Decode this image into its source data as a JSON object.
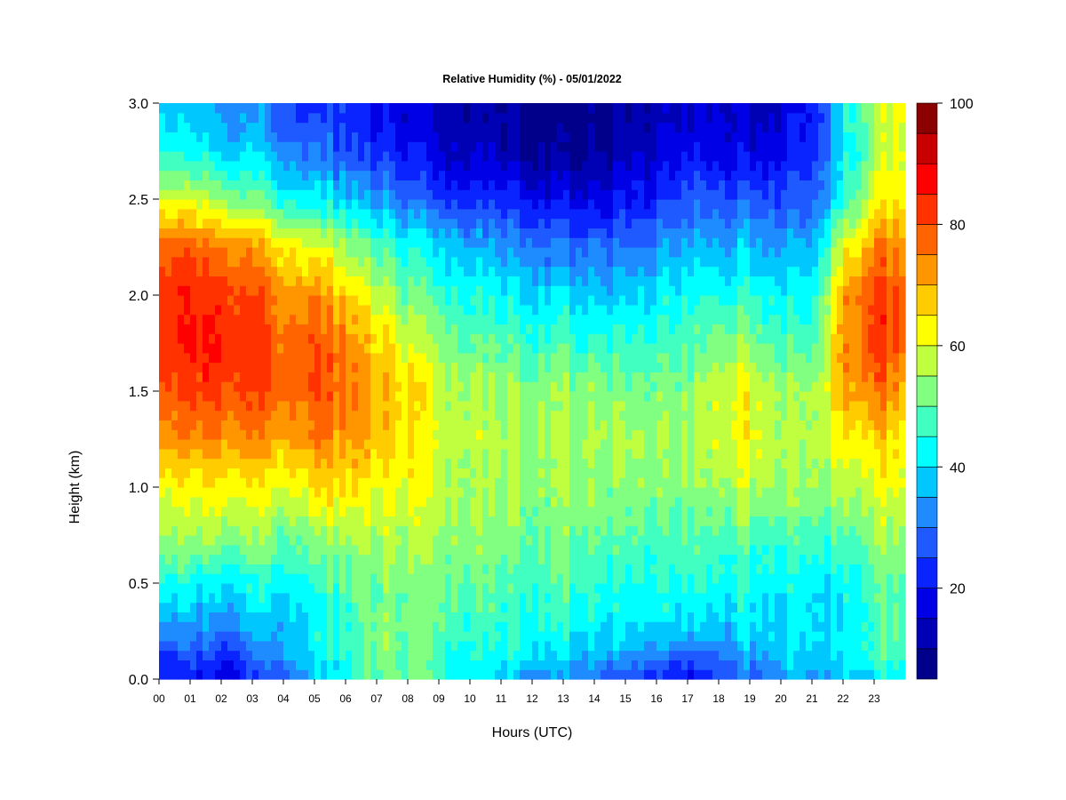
{
  "chart_data": {
    "type": "heatmap",
    "title": "Relative Humidity (%) - 05/01/2022",
    "xlabel": "Hours (UTC)",
    "ylabel": "Height (km)",
    "x_ticks": [
      "00",
      "01",
      "02",
      "03",
      "04",
      "05",
      "06",
      "07",
      "08",
      "09",
      "10",
      "11",
      "12",
      "13",
      "14",
      "15",
      "16",
      "17",
      "18",
      "19",
      "20",
      "21",
      "22",
      "23"
    ],
    "y_ticks": [
      "0.0",
      "0.5",
      "1.0",
      "1.5",
      "2.0",
      "2.5",
      "3.0"
    ],
    "xlim": [
      0,
      24
    ],
    "ylim": [
      0,
      3.0
    ],
    "heights_km": [
      0.0,
      0.1,
      0.2,
      0.35,
      0.5,
      0.75,
      1.0,
      1.25,
      1.5,
      1.75,
      2.0,
      2.25,
      2.5,
      2.75,
      3.0
    ],
    "hours": [
      0,
      1,
      2,
      3,
      4,
      5,
      6,
      7,
      8,
      9,
      10,
      11,
      12,
      13,
      14,
      15,
      16,
      17,
      18,
      19,
      20,
      21,
      22,
      23,
      24
    ],
    "values": [
      [
        20,
        24,
        30,
        38,
        45,
        55,
        62,
        72,
        80,
        84,
        84,
        78,
        60,
        45,
        38
      ],
      [
        22,
        26,
        32,
        38,
        45,
        56,
        64,
        74,
        82,
        86,
        86,
        80,
        60,
        44,
        38
      ],
      [
        18,
        22,
        28,
        35,
        42,
        55,
        64,
        74,
        82,
        86,
        84,
        76,
        55,
        40,
        34
      ],
      [
        22,
        26,
        32,
        38,
        44,
        54,
        62,
        72,
        80,
        82,
        80,
        72,
        52,
        38,
        32
      ],
      [
        30,
        35,
        38,
        40,
        44,
        52,
        62,
        72,
        78,
        78,
        74,
        65,
        45,
        34,
        28
      ],
      [
        38,
        40,
        42,
        42,
        46,
        54,
        65,
        74,
        80,
        80,
        74,
        62,
        42,
        30,
        24
      ],
      [
        42,
        44,
        45,
        46,
        48,
        55,
        64,
        72,
        76,
        74,
        66,
        55,
        38,
        26,
        22
      ],
      [
        50,
        52,
        52,
        52,
        52,
        56,
        62,
        68,
        70,
        66,
        58,
        48,
        34,
        22,
        18
      ],
      [
        52,
        52,
        52,
        52,
        52,
        56,
        62,
        66,
        66,
        60,
        52,
        44,
        30,
        20,
        16
      ],
      [
        46,
        48,
        50,
        52,
        52,
        56,
        58,
        60,
        60,
        55,
        48,
        40,
        26,
        16,
        14
      ],
      [
        42,
        44,
        46,
        48,
        50,
        54,
        56,
        58,
        56,
        50,
        44,
        36,
        24,
        14,
        12
      ],
      [
        38,
        42,
        44,
        46,
        48,
        52,
        54,
        56,
        54,
        48,
        42,
        34,
        22,
        12,
        10
      ],
      [
        34,
        40,
        44,
        46,
        48,
        52,
        54,
        56,
        54,
        48,
        40,
        32,
        20,
        10,
        8
      ],
      [
        32,
        38,
        42,
        46,
        48,
        52,
        54,
        56,
        54,
        48,
        40,
        30,
        18,
        8,
        6
      ],
      [
        30,
        36,
        40,
        44,
        46,
        50,
        54,
        56,
        54,
        46,
        38,
        30,
        18,
        10,
        8
      ],
      [
        26,
        32,
        38,
        42,
        44,
        50,
        54,
        56,
        52,
        46,
        38,
        30,
        20,
        12,
        10
      ],
      [
        22,
        28,
        36,
        42,
        44,
        48,
        52,
        54,
        52,
        46,
        40,
        32,
        22,
        14,
        12
      ],
      [
        18,
        24,
        34,
        40,
        44,
        48,
        52,
        54,
        52,
        48,
        42,
        36,
        26,
        18,
        14
      ],
      [
        24,
        28,
        34,
        40,
        44,
        48,
        54,
        58,
        58,
        52,
        44,
        36,
        26,
        18,
        14
      ],
      [
        30,
        34,
        38,
        42,
        44,
        50,
        58,
        64,
        62,
        54,
        46,
        38,
        28,
        18,
        14
      ],
      [
        34,
        38,
        40,
        42,
        44,
        50,
        56,
        58,
        56,
        50,
        44,
        36,
        28,
        20,
        16
      ],
      [
        34,
        38,
        40,
        40,
        42,
        48,
        54,
        56,
        54,
        48,
        42,
        36,
        28,
        22,
        20
      ],
      [
        36,
        40,
        40,
        40,
        42,
        48,
        56,
        62,
        70,
        72,
        70,
        60,
        44,
        40,
        42
      ],
      [
        42,
        46,
        48,
        48,
        50,
        54,
        60,
        66,
        76,
        82,
        82,
        74,
        62,
        54,
        56
      ],
      [
        44,
        48,
        50,
        50,
        52,
        56,
        62,
        66,
        72,
        80,
        80,
        74,
        66,
        62,
        66
      ]
    ],
    "colorbar": {
      "min": 5,
      "max": 100,
      "tick_labels": [
        "20",
        "40",
        "60",
        "80",
        "100"
      ],
      "tick_values": [
        20,
        40,
        60,
        80,
        100
      ],
      "colors": [
        "#00008b",
        "#0000b4",
        "#0000e6",
        "#0a24ff",
        "#1e5aff",
        "#1e8cff",
        "#00c8ff",
        "#00ffff",
        "#40ffc0",
        "#80ff80",
        "#c0ff40",
        "#ffff00",
        "#ffcc00",
        "#ff9600",
        "#ff6400",
        "#ff3200",
        "#ff0000",
        "#c80000",
        "#8b0000"
      ]
    }
  }
}
